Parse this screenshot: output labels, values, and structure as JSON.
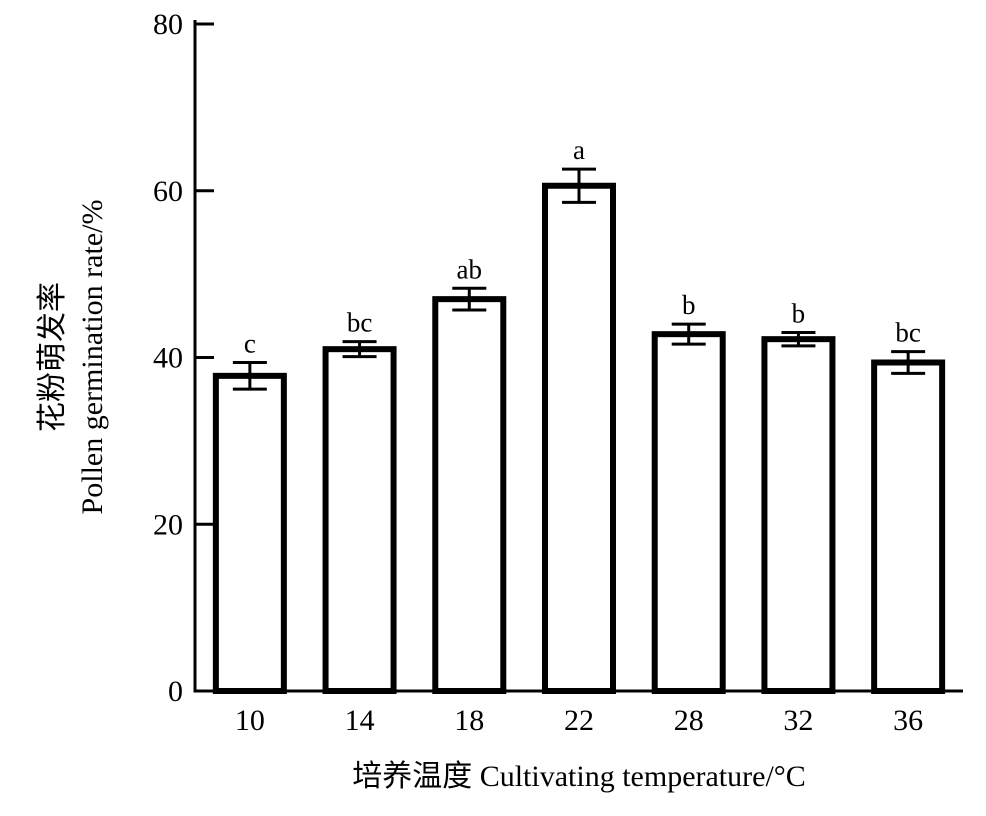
{
  "chart_data": {
    "type": "bar",
    "categories": [
      "10",
      "14",
      "18",
      "22",
      "28",
      "32",
      "36"
    ],
    "values": [
      37.8,
      41.0,
      47.0,
      60.6,
      42.8,
      42.2,
      39.4
    ],
    "errors": [
      1.6,
      0.9,
      1.3,
      2.0,
      1.2,
      0.8,
      1.3
    ],
    "significance_letters": [
      "c",
      "bc",
      "ab",
      "a",
      "b",
      "b",
      "bc"
    ],
    "xlabel": "培养温度 Cultivating temperature/°C",
    "ylabel_cn": "花粉萌发率",
    "ylabel_en": "Pollen germination rate/%",
    "ylim": [
      0,
      80
    ],
    "yticks": [
      0,
      20,
      40,
      60,
      80
    ],
    "bar_fill": "#ffffff",
    "bar_stroke": "#000000",
    "grid": false,
    "legend": "none"
  }
}
